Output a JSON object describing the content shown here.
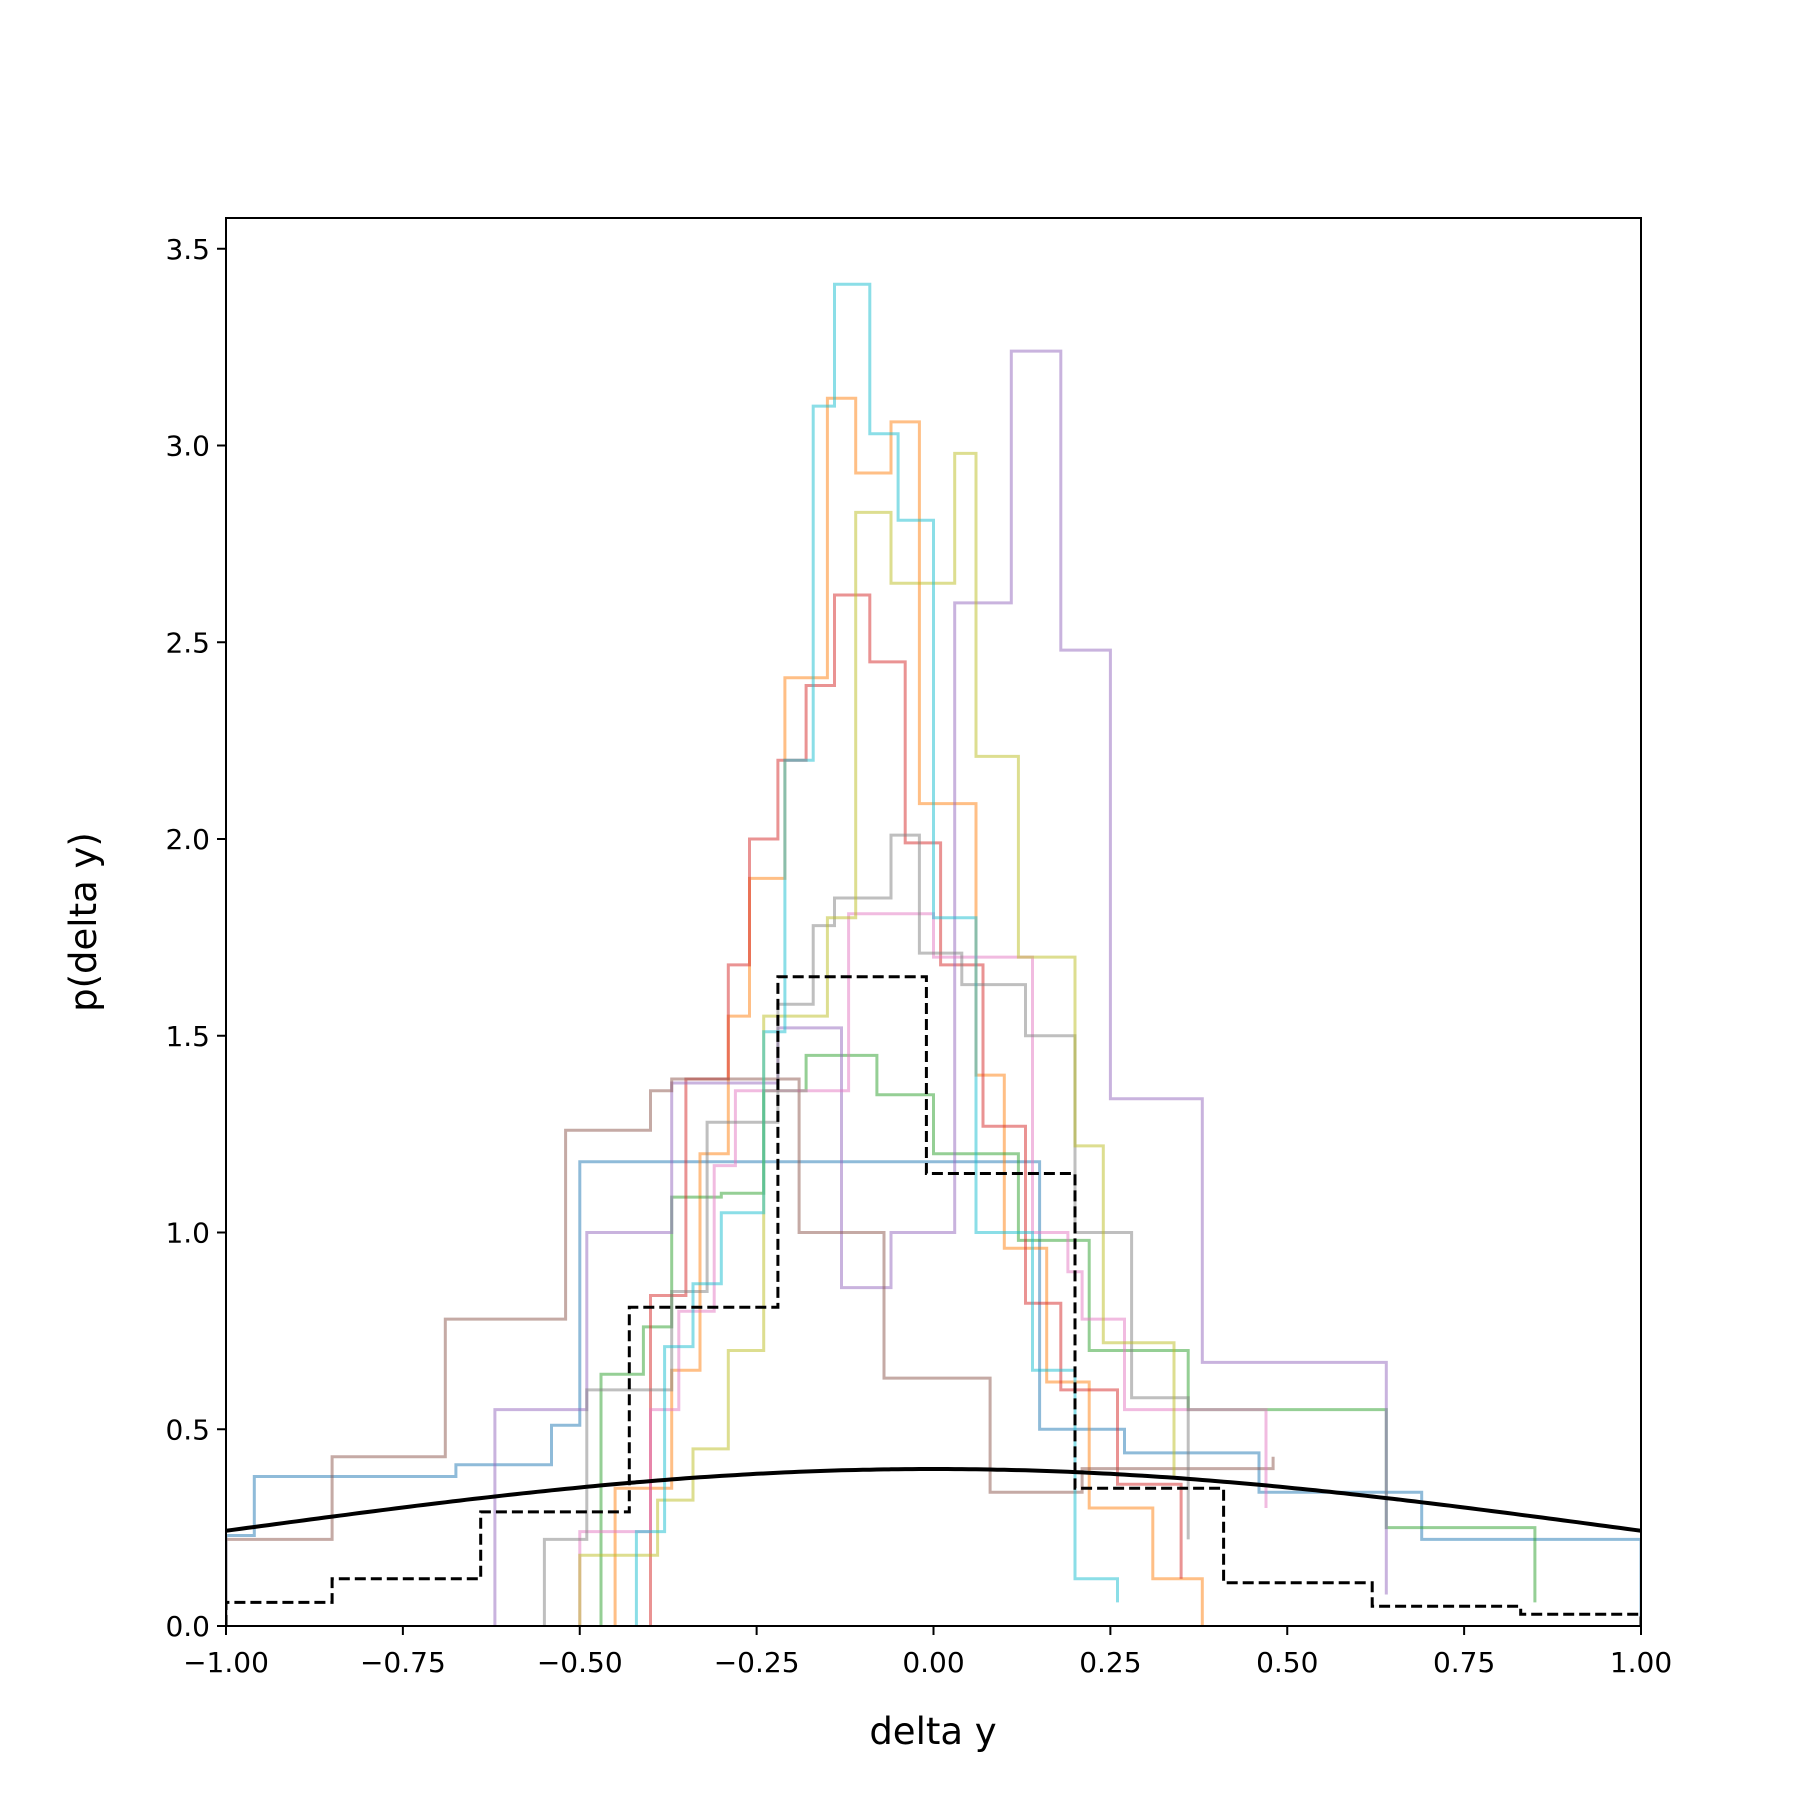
{
  "chart_data": {
    "type": "histogram-step",
    "xlabel": "delta y",
    "ylabel": "p(delta y)",
    "xlim": [
      -1.0,
      1.0
    ],
    "ylim": [
      0.0,
      3.58
    ],
    "xticks": [
      -1.0,
      -0.75,
      -0.5,
      -0.25,
      0.0,
      0.25,
      0.5,
      0.75,
      1.0
    ],
    "xtick_labels": [
      "−1.00",
      "−0.75",
      "−0.50",
      "−0.25",
      "0.00",
      "0.25",
      "0.50",
      "0.75",
      "1.00"
    ],
    "yticks": [
      0.0,
      0.5,
      1.0,
      1.5,
      2.0,
      2.5,
      3.0,
      3.5
    ],
    "ytick_labels": [
      "0.0",
      "0.5",
      "1.0",
      "1.5",
      "2.0",
      "2.5",
      "3.0",
      "3.5"
    ],
    "grid": false,
    "legend": "none",
    "series": [
      {
        "color": "#1f77b4",
        "edges": [
          -1.0,
          -0.96,
          -0.675,
          -0.54,
          -0.5,
          0.15,
          0.27,
          0.46,
          0.69,
          1.0
        ],
        "values": [
          0.23,
          0.38,
          0.41,
          0.51,
          1.18,
          0.5,
          0.44,
          0.34,
          0.22
        ]
      },
      {
        "color": "#ff7f0e",
        "edges": [
          -0.45,
          -0.37,
          -0.33,
          -0.29,
          -0.26,
          -0.21,
          -0.15,
          -0.11,
          -0.06,
          -0.02,
          0.06,
          0.1,
          0.16,
          0.22,
          0.31,
          0.38
        ],
        "values": [
          0.35,
          0.65,
          1.2,
          1.55,
          1.9,
          2.41,
          3.12,
          2.93,
          3.06,
          2.09,
          1.4,
          0.96,
          0.62,
          0.3,
          0.12
        ]
      },
      {
        "color": "#2ca02c",
        "edges": [
          -0.47,
          -0.41,
          -0.37,
          -0.3,
          -0.24,
          -0.18,
          -0.08,
          0.0,
          0.12,
          0.22,
          0.36,
          0.64,
          0.85
        ],
        "values": [
          0.64,
          0.76,
          1.09,
          1.1,
          1.36,
          1.45,
          1.35,
          1.2,
          0.98,
          0.7,
          0.55,
          0.25,
          0.06
        ]
      },
      {
        "color": "#d62728",
        "edges": [
          -0.4,
          -0.35,
          -0.29,
          -0.26,
          -0.22,
          -0.18,
          -0.14,
          -0.09,
          -0.04,
          0.01,
          0.07,
          0.13,
          0.18,
          0.26,
          0.35
        ],
        "values": [
          0.84,
          1.39,
          1.68,
          2.0,
          2.2,
          2.39,
          2.62,
          2.45,
          1.99,
          1.68,
          1.27,
          0.82,
          0.6,
          0.36,
          0.12
        ]
      },
      {
        "color": "#9467bd",
        "edges": [
          -0.62,
          -0.49,
          -0.37,
          -0.22,
          -0.13,
          -0.06,
          0.03,
          0.11,
          0.18,
          0.25,
          0.38,
          0.64
        ],
        "values": [
          0.55,
          1.0,
          1.38,
          1.52,
          0.86,
          1.0,
          2.6,
          3.24,
          2.48,
          1.34,
          0.67,
          0.08
        ]
      },
      {
        "color": "#8c564b",
        "edges": [
          -1.0,
          -0.85,
          -0.69,
          -0.52,
          -0.4,
          -0.37,
          -0.19,
          -0.07,
          0.08,
          0.21,
          0.48
        ],
        "values": [
          0.22,
          0.43,
          0.78,
          1.26,
          1.36,
          1.39,
          1.0,
          0.63,
          0.34,
          0.4,
          0.43
        ]
      },
      {
        "color": "#e377c2",
        "edges": [
          -0.5,
          -0.4,
          -0.36,
          -0.31,
          -0.28,
          -0.12,
          0.0,
          0.14,
          0.19,
          0.21,
          0.27,
          0.47
        ],
        "values": [
          0.24,
          0.55,
          0.8,
          1.17,
          1.36,
          1.81,
          1.7,
          1.0,
          0.9,
          0.78,
          0.55,
          0.3
        ]
      },
      {
        "color": "#7f7f7f",
        "edges": [
          -0.55,
          -0.49,
          -0.37,
          -0.32,
          -0.22,
          -0.17,
          -0.14,
          -0.06,
          -0.02,
          0.04,
          0.13,
          0.2,
          0.28,
          0.36
        ],
        "values": [
          0.22,
          0.6,
          0.85,
          1.28,
          1.58,
          1.78,
          1.85,
          2.01,
          1.71,
          1.63,
          1.5,
          1.0,
          0.58,
          0.22
        ]
      },
      {
        "color": "#bcbd22",
        "edges": [
          -0.5,
          -0.39,
          -0.34,
          -0.29,
          -0.24,
          -0.15,
          -0.11,
          -0.06,
          0.03,
          0.06,
          0.12,
          0.2,
          0.24,
          0.34
        ],
        "values": [
          0.18,
          0.32,
          0.45,
          0.7,
          1.55,
          1.8,
          2.83,
          2.65,
          2.98,
          2.21,
          1.7,
          1.22,
          0.72,
          0.38
        ]
      },
      {
        "color": "#17becf",
        "edges": [
          -0.42,
          -0.38,
          -0.34,
          -0.3,
          -0.24,
          -0.21,
          -0.17,
          -0.14,
          -0.09,
          -0.05,
          0.0,
          0.06,
          0.14,
          0.2,
          0.26
        ],
        "values": [
          0.24,
          0.71,
          0.87,
          1.05,
          1.51,
          2.2,
          3.1,
          3.41,
          3.03,
          2.81,
          1.8,
          1.0,
          0.65,
          0.12,
          0.06
        ]
      }
    ],
    "dashed_series": {
      "color": "#000000",
      "edges": [
        -1.0,
        -0.85,
        -0.64,
        -0.43,
        -0.22,
        -0.01,
        0.2,
        0.41,
        0.62,
        0.83,
        1.0
      ],
      "values": [
        0.06,
        0.12,
        0.29,
        0.81,
        1.65,
        1.15,
        0.35,
        0.11,
        0.05,
        0.03
      ]
    },
    "curve": {
      "color": "#000000",
      "type": "gaussian",
      "mean": 0.0,
      "sigma": 1.0
    }
  }
}
